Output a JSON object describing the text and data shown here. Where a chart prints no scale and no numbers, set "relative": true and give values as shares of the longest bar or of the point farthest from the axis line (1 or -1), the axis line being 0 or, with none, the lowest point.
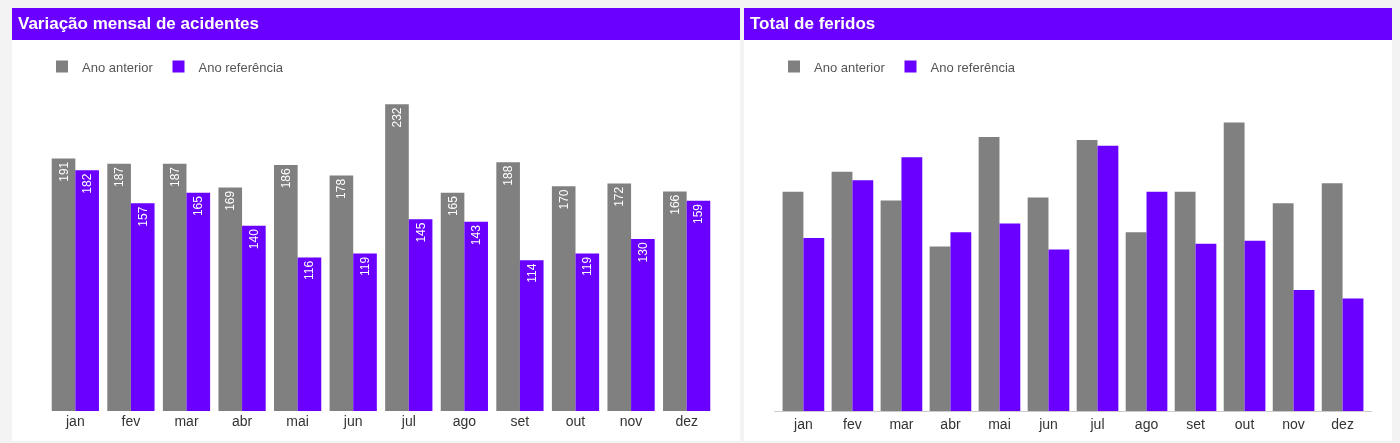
{
  "chart_data": [
    {
      "type": "bar",
      "title": "Variação mensal de acidentes",
      "categories": [
        "jan",
        "fev",
        "mar",
        "abr",
        "mai",
        "jun",
        "jul",
        "ago",
        "set",
        "out",
        "nov",
        "dez"
      ],
      "legend": "top left",
      "data_labels": true,
      "series": [
        {
          "name": "Ano anterior",
          "color": "#808080",
          "values": [
            191,
            187,
            187,
            169,
            186,
            178,
            232,
            165,
            188,
            170,
            172,
            166
          ]
        },
        {
          "name": "Ano referência",
          "color": "#6a00ff",
          "values": [
            182,
            157,
            165,
            140,
            116,
            119,
            145,
            143,
            114,
            119,
            130,
            159
          ]
        }
      ]
    },
    {
      "type": "bar",
      "title": "Total de feridos",
      "categories": [
        "jan",
        "fev",
        "mar",
        "abr",
        "mai",
        "jun",
        "jul",
        "ago",
        "set",
        "out",
        "nov",
        "dez"
      ],
      "legend": "top left",
      "relative": true,
      "series": [
        {
          "name": "Ano anterior",
          "color": "#808080",
          "values": [
            0.76,
            0.83,
            0.73,
            0.57,
            0.95,
            0.74,
            0.94,
            0.62,
            0.76,
            1,
            0.72,
            0.79
          ]
        },
        {
          "name": "Ano referência",
          "color": "#6a00ff",
          "values": [
            0.6,
            0.8,
            0.88,
            0.62,
            0.65,
            0.56,
            0.92,
            0.76,
            0.58,
            0.59,
            0.42,
            0.39
          ]
        }
      ]
    }
  ]
}
